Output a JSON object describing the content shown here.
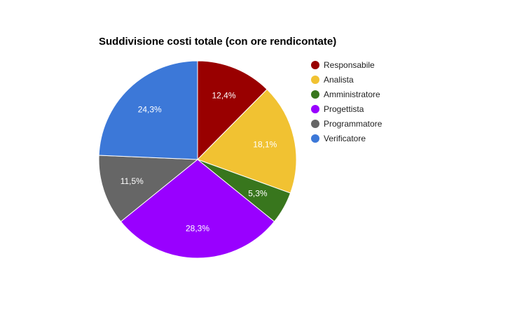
{
  "chart_data": {
    "type": "pie",
    "title": "Suddivisione costi totale (con ore rendicontate)",
    "legend_position": "right",
    "start_angle": "top, clockwise",
    "slices": [
      {
        "label": "Responsabile",
        "value": 12.4,
        "display": "12,4%",
        "color": "#990000"
      },
      {
        "label": "Analista",
        "value": 18.1,
        "display": "18,1%",
        "color": "#f1c232"
      },
      {
        "label": "Amministratore",
        "value": 5.3,
        "display": "5,3%",
        "color": "#38761d"
      },
      {
        "label": "Progettista",
        "value": 28.3,
        "display": "28,3%",
        "color": "#9900ff"
      },
      {
        "label": "Programmatore",
        "value": 11.5,
        "display": "11,5%",
        "color": "#666666"
      },
      {
        "label": "Verificatore",
        "value": 24.3,
        "display": "24,3%",
        "color": "#3c78d8"
      }
    ]
  }
}
